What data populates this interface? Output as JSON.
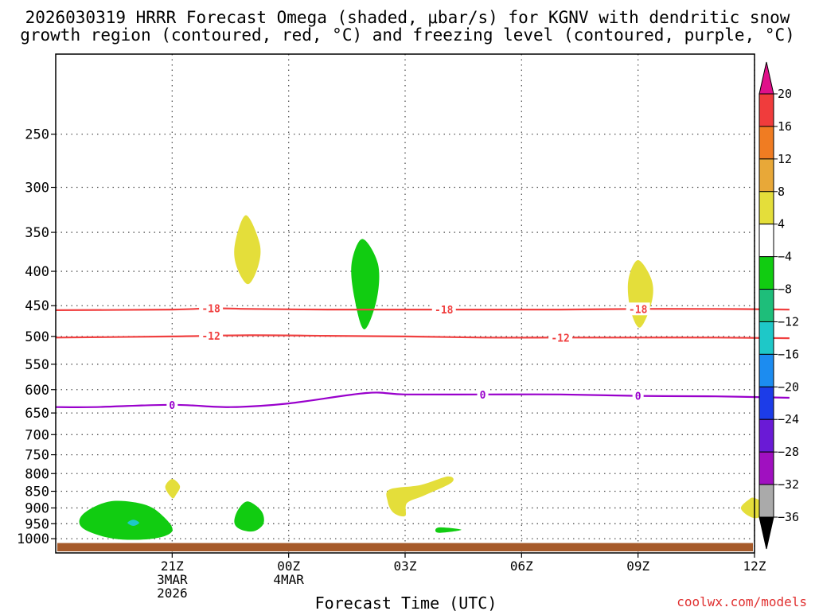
{
  "chart_data": {
    "type": "heatmap",
    "title_lines": [
      "2026030319 HRRR Forecast Omega (shaded, μbar/s) for KGNV with dendritic snow",
      "growth region (contoured, red, °C) and freezing level (contoured, purple, °C)"
    ],
    "xlabel": "Forecast Time (UTC)",
    "credit": "coolwx.com/models",
    "x_range_hours": [
      -3,
      15
    ],
    "y_scale": "log",
    "y_range_mb": [
      1050,
      190
    ],
    "grid": true,
    "x_ticks": [
      {
        "hour": 0,
        "lines": [
          "21Z",
          "3MAR",
          "2026"
        ]
      },
      {
        "hour": 3,
        "lines": [
          "00Z",
          "4MAR"
        ]
      },
      {
        "hour": 6,
        "lines": [
          "03Z"
        ]
      },
      {
        "hour": 9,
        "lines": [
          "06Z"
        ]
      },
      {
        "hour": 12,
        "lines": [
          "09Z"
        ]
      },
      {
        "hour": 15,
        "lines": [
          "12Z"
        ]
      }
    ],
    "y_ticks": [
      250,
      300,
      350,
      400,
      450,
      500,
      550,
      600,
      650,
      700,
      750,
      800,
      850,
      900,
      950,
      1000
    ],
    "contours": [
      {
        "kind": "dgz",
        "value": -18,
        "label": "-18",
        "color": "#f04040",
        "points": [
          [
            -3,
            457
          ],
          [
            0,
            456
          ],
          [
            1,
            454
          ],
          [
            2,
            455
          ],
          [
            4,
            456
          ],
          [
            6,
            456
          ],
          [
            8,
            456
          ],
          [
            10,
            456
          ],
          [
            12,
            455
          ],
          [
            14,
            455
          ],
          [
            15.9,
            456
          ]
        ],
        "label_hours": [
          1,
          7,
          12
        ]
      },
      {
        "kind": "dgz",
        "value": -12,
        "label": "-12",
        "color": "#f04040",
        "points": [
          [
            -3,
            502
          ],
          [
            0,
            500
          ],
          [
            2,
            498
          ],
          [
            4,
            499
          ],
          [
            6,
            500
          ],
          [
            8,
            502
          ],
          [
            10,
            502
          ],
          [
            12,
            502
          ],
          [
            14,
            502
          ],
          [
            15.9,
            503
          ]
        ],
        "label_hours": [
          1,
          10
        ]
      },
      {
        "kind": "freezing",
        "value": 0,
        "label": "0",
        "color": "#9900cc",
        "points": [
          [
            -3,
            637
          ],
          [
            -2,
            637
          ],
          [
            0,
            632
          ],
          [
            1.5,
            637
          ],
          [
            3,
            629
          ],
          [
            5,
            607
          ],
          [
            6,
            610
          ],
          [
            8,
            610
          ],
          [
            10,
            610
          ],
          [
            12,
            613
          ],
          [
            14,
            614
          ],
          [
            15.9,
            617
          ]
        ],
        "label_hours": [
          0,
          8,
          12
        ]
      }
    ],
    "shaded_regions": [
      {
        "range": "4 to 8",
        "color": "#e4de3a",
        "points": [
          [
            1.9,
            330
          ],
          [
            2.25,
            363
          ],
          [
            2.22,
            392
          ],
          [
            1.95,
            418
          ],
          [
            1.65,
            392
          ],
          [
            1.62,
            363
          ]
        ]
      },
      {
        "range": "-4 to -8",
        "color": "#11cc11",
        "points": [
          [
            4.9,
            358
          ],
          [
            5.3,
            390
          ],
          [
            5.27,
            440
          ],
          [
            4.95,
            488
          ],
          [
            4.7,
            440
          ],
          [
            4.62,
            390
          ]
        ]
      },
      {
        "range": "4 to 8",
        "color": "#e4de3a",
        "points": [
          [
            12.0,
            385
          ],
          [
            12.35,
            412
          ],
          [
            12.35,
            445
          ],
          [
            12.05,
            485
          ],
          [
            11.8,
            455
          ],
          [
            11.75,
            412
          ]
        ]
      },
      {
        "range": "4 to 8",
        "color": "#e4de3a",
        "points": [
          [
            0,
            815
          ],
          [
            0.2,
            835
          ],
          [
            0.1,
            860
          ],
          [
            0,
            870
          ],
          [
            -0.18,
            838
          ]
        ]
      },
      {
        "range": "-4 to -8",
        "color": "#11cc11",
        "points": [
          [
            -1.6,
            880
          ],
          [
            -0.7,
            890
          ],
          [
            -0.2,
            930
          ],
          [
            0,
            975
          ],
          [
            -0.5,
            1000
          ],
          [
            -1.5,
            1000
          ],
          [
            -2.3,
            965
          ],
          [
            -2.3,
            920
          ]
        ]
      },
      {
        "range": "-12 to -16",
        "color": "#1ec8c8",
        "points": [
          [
            -1.0,
            937
          ],
          [
            -0.85,
            947
          ],
          [
            -1.0,
            957
          ],
          [
            -1.15,
            947
          ]
        ]
      },
      {
        "range": "-4 to -8",
        "color": "#11cc11",
        "points": [
          [
            1.95,
            880
          ],
          [
            2.3,
            910
          ],
          [
            2.35,
            950
          ],
          [
            2.1,
            975
          ],
          [
            1.75,
            968
          ],
          [
            1.6,
            945
          ],
          [
            1.7,
            905
          ]
        ]
      },
      {
        "range": "4 to 8",
        "color": "#e4de3a",
        "points": [
          [
            5.6,
            845
          ],
          [
            6.4,
            832
          ],
          [
            7.1,
            808
          ],
          [
            7.2,
            825
          ],
          [
            6.5,
            862
          ],
          [
            6.05,
            885
          ],
          [
            6.0,
            925
          ],
          [
            5.7,
            915
          ],
          [
            5.55,
            880
          ]
        ]
      },
      {
        "range": "-4 to -8",
        "color": "#11cc11",
        "points": [
          [
            6.9,
            962
          ],
          [
            7.45,
            970
          ],
          [
            6.9,
            980
          ],
          [
            6.78,
            972
          ]
        ]
      },
      {
        "range": "4 to 8",
        "color": "#e4de3a",
        "points": [
          [
            15.0,
            870
          ],
          [
            15.35,
            895
          ],
          [
            15.1,
            930
          ],
          [
            14.85,
            925
          ],
          [
            14.65,
            900
          ],
          [
            14.85,
            875
          ]
        ]
      }
    ],
    "ground": {
      "color": "#a65a2a",
      "top_mb": 1015
    },
    "colorbar": {
      "labels": [
        "20",
        "16",
        "12",
        "8",
        "4",
        "−4",
        "−8",
        "−12",
        "−16",
        "−20",
        "−24",
        "−28",
        "−32",
        "−36"
      ],
      "bins": [
        {
          "range": "16 to 20",
          "color": "#f03c3c"
        },
        {
          "range": "12 to 16",
          "color": "#f07c22"
        },
        {
          "range": "8 to 12",
          "color": "#e8a838"
        },
        {
          "range": "4 to 8",
          "color": "#e4de3a"
        },
        {
          "range": "-4 to 4",
          "color": "#ffffff"
        },
        {
          "range": "-8 to -4",
          "color": "#11cc11"
        },
        {
          "range": "-12 to -8",
          "color": "#1ebe7a"
        },
        {
          "range": "-16 to -12",
          "color": "#1ec8c8"
        },
        {
          "range": "-20 to -16",
          "color": "#1c8cf0"
        },
        {
          "range": "-24 to -20",
          "color": "#1c3ce8"
        },
        {
          "range": "-28 to -24",
          "color": "#6a1ad6"
        },
        {
          "range": "-32 to -28",
          "color": "#a010c0"
        },
        {
          "range": "-36 to -32",
          "color": "#aaaaaa"
        }
      ],
      "top_arrow_color": "#e0108a",
      "bottom_arrow_color": "#000000"
    }
  }
}
